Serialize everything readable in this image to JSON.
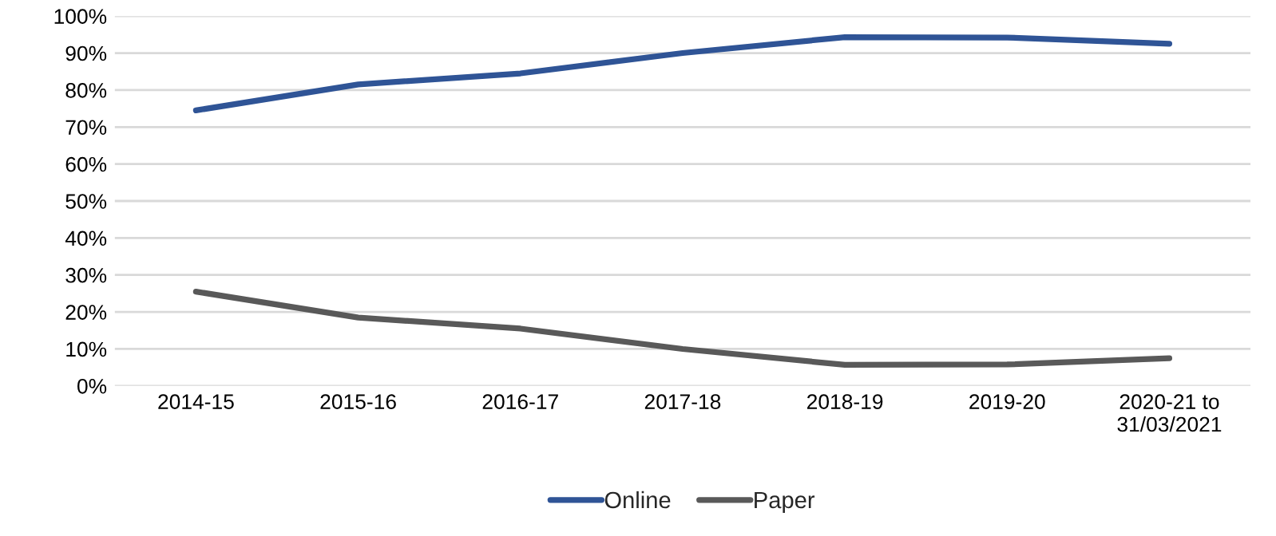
{
  "chart_data": {
    "type": "line",
    "categories": [
      "2014-15",
      "2015-16",
      "2016-17",
      "2017-18",
      "2018-19",
      "2019-20",
      "2020-21 to\n31/03/2021"
    ],
    "series": [
      {
        "name": "Online",
        "color": "#2f5496",
        "values": [
          74.5,
          81.5,
          84.5,
          90,
          94.3,
          94.2,
          92.5
        ]
      },
      {
        "name": "Paper",
        "color": "#595959",
        "values": [
          25.5,
          18.5,
          15.5,
          10,
          5.7,
          5.8,
          7.5
        ]
      }
    ],
    "ylim": [
      0,
      100
    ],
    "yticks": [
      {
        "value": 0,
        "label": "0%"
      },
      {
        "value": 10,
        "label": "10%"
      },
      {
        "value": 20,
        "label": "20%"
      },
      {
        "value": 30,
        "label": "30%"
      },
      {
        "value": 40,
        "label": "40%"
      },
      {
        "value": 50,
        "label": "50%"
      },
      {
        "value": 60,
        "label": "60%"
      },
      {
        "value": 70,
        "label": "70%"
      },
      {
        "value": 80,
        "label": "80%"
      },
      {
        "value": 90,
        "label": "90%"
      },
      {
        "value": 100,
        "label": "100%"
      }
    ],
    "grid": "y",
    "legend": "bottom",
    "marker": "none",
    "line_style": "solid"
  }
}
